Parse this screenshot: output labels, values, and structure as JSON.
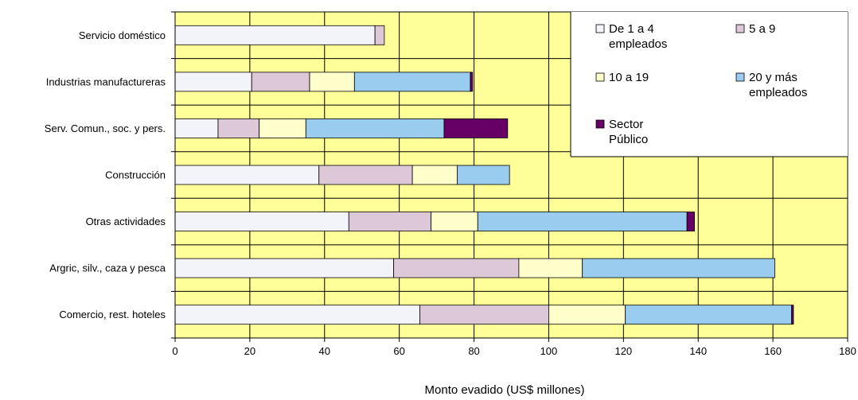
{
  "chart_data": {
    "type": "bar",
    "orientation": "horizontal",
    "stacked": true,
    "xlabel": "Monto evadido (US$ millones)",
    "xlim": [
      0,
      180
    ],
    "xticks": [
      0,
      20,
      40,
      60,
      80,
      100,
      120,
      140,
      160,
      180
    ],
    "grid": true,
    "legend_position": "top-right",
    "plot_background": "#FFFF99",
    "categories": [
      "Servicio doméstico",
      "Industrias manufactureras",
      "Serv. Comun., soc. y pers.",
      "Construcción",
      "Otras actividades",
      "Argric, silv., caza y pesca",
      "Comercio, rest. hoteles"
    ],
    "series": [
      {
        "name": "De 1 a 4 empleados",
        "legend_lines": [
          "De 1 a 4",
          "empleados"
        ],
        "color": "#F3F3FA",
        "values": [
          53.5,
          20.5,
          11.5,
          38.5,
          46.5,
          58.5,
          65.5
        ]
      },
      {
        "name": "5 a 9",
        "legend_lines": [
          "5 a 9"
        ],
        "color": "#DCC8D6",
        "values": [
          2.5,
          15.5,
          11,
          25,
          22,
          33.5,
          34.5
        ]
      },
      {
        "name": "10 a 19",
        "legend_lines": [
          "10 a 19"
        ],
        "color": "#FFFFCC",
        "values": [
          0,
          12,
          12.5,
          12,
          12.5,
          17,
          20.5
        ]
      },
      {
        "name": "20 y más empleados",
        "legend_lines": [
          "20 y más",
          "empleados"
        ],
        "color": "#99CCEE",
        "values": [
          0,
          31,
          37,
          14,
          56,
          51.5,
          44.5
        ]
      },
      {
        "name": "Sector Público",
        "legend_lines": [
          "Sector",
          "Público"
        ],
        "color": "#660066",
        "values": [
          0,
          0.6,
          17,
          0,
          2,
          0,
          0.5
        ]
      }
    ]
  }
}
